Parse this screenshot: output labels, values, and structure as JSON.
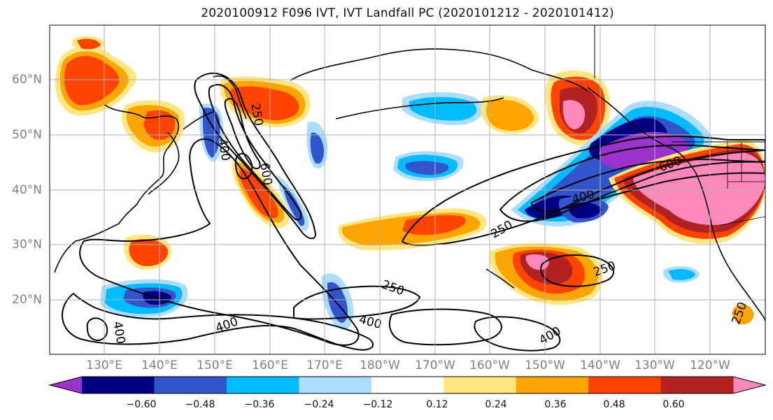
{
  "title": "2020100912 F096 IVT, IVT Landfall PC (2020101212 - 2020101412)",
  "lat_labels": [
    "60°N",
    "50°N",
    "40°N",
    "30°N",
    "20°N"
  ],
  "lon_labels": [
    "130°E",
    "140°E",
    "150°E",
    "160°E",
    "170°E",
    "180°W",
    "170°W",
    "160°W",
    "150°W",
    "140°W",
    "130°W",
    "120°W"
  ],
  "contour_labels": [
    "250",
    "400",
    "600",
    "400",
    "250",
    "250",
    "250",
    "400",
    "400",
    "250",
    "400",
    "400",
    "600"
  ],
  "colorbar": {
    "colors": [
      "#9933cc",
      "#000080",
      "#3355cc",
      "#00bbff",
      "#aaddff",
      "#ffffff",
      "#ffe680",
      "#ffa500",
      "#ff4400",
      "#b22222",
      "#ff88bb"
    ],
    "tick_labels": [
      "−0.60",
      "−0.48",
      "−0.36",
      "−0.24",
      "−0.12",
      "0.12",
      "0.24",
      "0.36",
      "0.48",
      "0.60"
    ]
  }
}
